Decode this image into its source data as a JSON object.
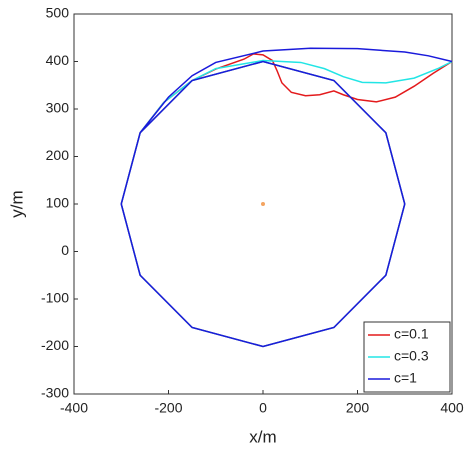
{
  "chart_data": {
    "type": "line",
    "xlabel": "x/m",
    "ylabel": "y/m",
    "xlim": [
      -400,
      400
    ],
    "xticks": [
      -400,
      -200,
      0,
      200,
      400
    ],
    "ylim": [
      -300,
      500
    ],
    "yticks": [
      -300,
      -200,
      -100,
      0,
      100,
      200,
      300,
      400,
      500
    ],
    "legend": "lower right",
    "series": [
      {
        "name": "c=0.1",
        "color": "#e31a1c",
        "x": [
          400,
          360,
          320,
          280,
          240,
          200,
          170,
          150,
          120,
          90,
          60,
          40,
          30,
          20,
          0,
          -20,
          -40,
          -100,
          -150,
          -210,
          -260,
          -300,
          -260,
          -150,
          0,
          150,
          260,
          300,
          260,
          150,
          0,
          -150,
          -260
        ],
        "values": [
          400,
          375,
          348,
          325,
          315,
          320,
          330,
          338,
          330,
          328,
          335,
          355,
          380,
          402,
          414,
          416,
          405,
          384,
          360,
          314,
          250,
          100,
          -50,
          -160,
          -200,
          -160,
          -50,
          100,
          250,
          360,
          400,
          360,
          250
        ]
      },
      {
        "name": "c=0.3",
        "color": "#22e5e5",
        "x": [
          400,
          370,
          320,
          260,
          210,
          170,
          130,
          80,
          0,
          -100,
          -150,
          -210,
          -260,
          -300,
          -260,
          -150,
          0,
          150,
          260,
          300,
          260,
          150,
          0,
          -150,
          -260
        ],
        "values": [
          400,
          385,
          365,
          355,
          356,
          368,
          385,
          398,
          402,
          385,
          360,
          314,
          250,
          100,
          -50,
          -160,
          -200,
          -160,
          -50,
          100,
          250,
          360,
          400,
          360,
          250
        ]
      },
      {
        "name": "c=1",
        "color": "#1a1adb",
        "x": [
          400,
          350,
          300,
          200,
          100,
          0,
          -100,
          -150,
          -200,
          -260,
          -300,
          -260,
          -150,
          0,
          150,
          260,
          300,
          260,
          150,
          0,
          -150,
          -260
        ],
        "values": [
          400,
          412,
          420,
          427,
          428,
          422,
          398,
          370,
          325,
          250,
          100,
          -50,
          -160,
          -200,
          -160,
          -50,
          100,
          250,
          360,
          400,
          360,
          250
        ]
      }
    ],
    "markers": [
      {
        "x": 0,
        "y": 100,
        "color": "#f4a460"
      }
    ]
  }
}
